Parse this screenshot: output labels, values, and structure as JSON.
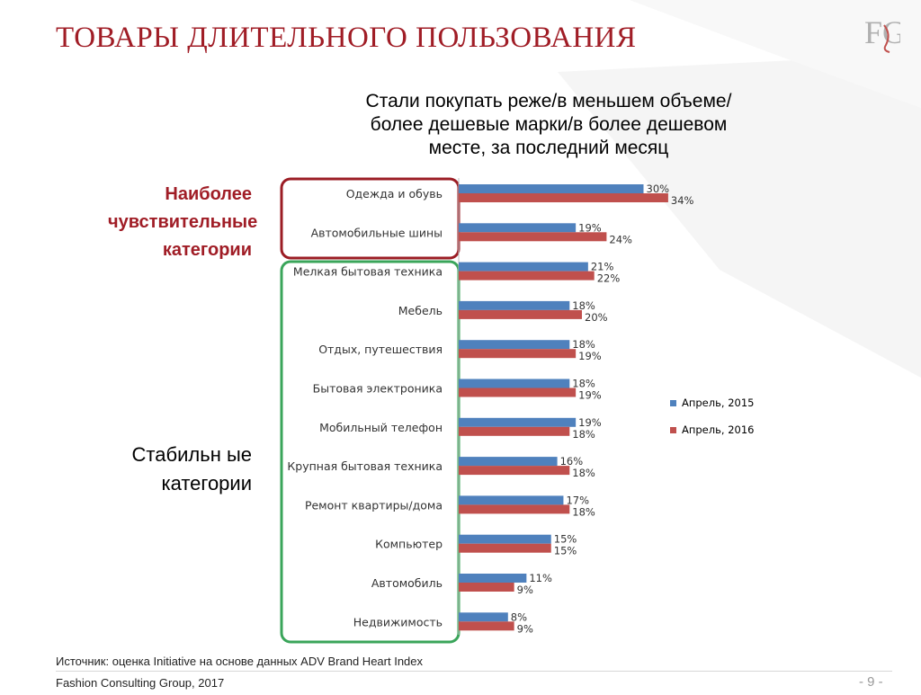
{
  "slide": {
    "title": "ТОВАРЫ ДЛИТЕЛЬНОГО ПОЛЬЗОВАНИЯ",
    "logo_text": "FG",
    "group_sensitive": "Наиболее чувствительные категории",
    "group_stable": "Стабильн ые категории",
    "source": "Источник: оценка Initiative на основе данных ADV Brand Heart Index",
    "footer": "Fashion Consulting Group, 2017",
    "page": "- 9 -",
    "colors": {
      "title": "#a01d26",
      "series_2015": "#4f81bd",
      "series_2016": "#c0504d",
      "box_sensitive": "#9b1c24",
      "box_stable": "#3aa55a"
    }
  },
  "chart_data": {
    "type": "bar",
    "orientation": "horizontal",
    "title": "Стали покупать реже/в меньшем объеме/более дешевые марки/в более дешевом месте, за последний месяц",
    "categories": [
      "Одежда и обувь",
      "Автомобильные шины",
      "Мелкая бытовая техника",
      "Мебель",
      "Отдых, путешествия",
      "Бытовая электроника",
      "Мобильный телефон",
      "Крупная бытовая техника",
      "Ремонт квартиры/дома",
      "Компьютер",
      "Автомобиль",
      "Недвижимость"
    ],
    "series": [
      {
        "name": "Апрель, 2015",
        "values": [
          30,
          19,
          21,
          18,
          18,
          18,
          19,
          16,
          17,
          15,
          11,
          8
        ],
        "labels": [
          "30%",
          "19%",
          "21%",
          "18%",
          "18%",
          "18%",
          "19%",
          "16%",
          "17%",
          "15%",
          "11%",
          "8%"
        ]
      },
      {
        "name": "Апрель, 2016",
        "values": [
          34,
          24,
          22,
          20,
          19,
          19,
          18,
          18,
          18,
          15,
          9,
          9
        ],
        "labels": [
          "34%",
          "24%",
          "22%",
          "20%",
          "19%",
          "19%",
          "18%",
          "18%",
          "18%",
          "15%",
          "9%",
          "9%"
        ]
      }
    ],
    "xlim": [
      0,
      40
    ],
    "grid": false,
    "legend": "right"
  }
}
